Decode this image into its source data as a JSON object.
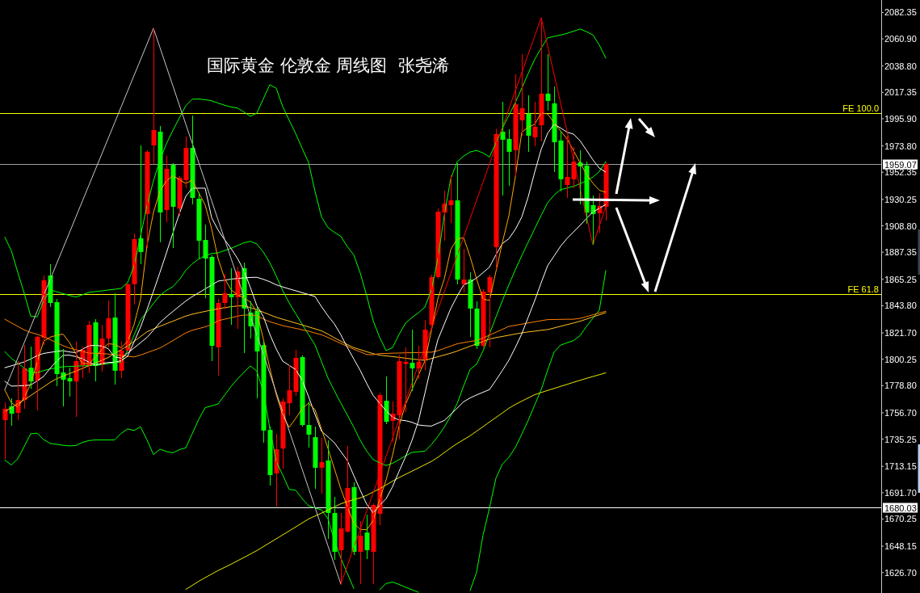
{
  "chart_data": {
    "type": "candlestick",
    "title": "国际黄金 伦敦金 周线图  张尧浠",
    "tick_labels": "y",
    "categories": [
      null,
      null,
      null,
      null,
      null,
      null,
      null,
      null,
      null,
      null,
      null,
      null,
      null,
      null,
      null,
      null,
      null,
      null,
      null,
      null,
      null,
      null,
      null,
      null,
      null,
      null,
      null,
      null,
      null,
      null,
      null,
      null,
      null,
      null,
      null,
      null,
      null,
      null,
      null,
      null,
      null,
      null,
      null,
      null,
      null,
      null,
      null,
      null,
      null,
      null,
      null,
      null,
      null,
      null,
      null,
      null,
      null,
      null,
      null,
      null,
      null,
      null,
      null,
      null,
      null,
      null,
      null,
      null,
      null,
      null,
      null,
      null,
      null,
      null,
      null,
      null,
      null,
      null,
      null,
      null,
      null,
      null,
      null,
      null,
      null,
      null,
      null,
      null,
      null,
      null,
      null,
      null,
      null,
      null
    ],
    "ohlc": [
      [
        1750.7,
        1765.2,
        1719.2,
        1760.0
      ],
      [
        1761.9,
        1768.5,
        1746.1,
        1756.0
      ],
      [
        1756.6,
        1798.6,
        1750.7,
        1767.1
      ],
      [
        1767.1,
        1811.8,
        1760.0,
        1792.8
      ],
      [
        1793.4,
        1810.5,
        1776.1,
        1782.2
      ],
      [
        1783.0,
        1819.1,
        1758.6,
        1818.5
      ],
      [
        1817.8,
        1868.4,
        1811.8,
        1864.5
      ],
      [
        1868.4,
        1877.6,
        1842.8,
        1846.0
      ],
      [
        1846.7,
        1849.3,
        1778.3,
        1788.2
      ],
      [
        1789.5,
        1808.6,
        1761.9,
        1783.6
      ],
      [
        1784.9,
        1793.4,
        1769.8,
        1782.2
      ],
      [
        1782.2,
        1814.7,
        1753.4,
        1798.7
      ],
      [
        1795.4,
        1810.5,
        1784.9,
        1807.9
      ],
      [
        1795.4,
        1831.6,
        1788.9,
        1828.3
      ],
      [
        1830.3,
        1832.9,
        1782.2,
        1794.8
      ],
      [
        1795.4,
        1828.3,
        1790.2,
        1817.1
      ],
      [
        1817.1,
        1848.0,
        1809.9,
        1833.6
      ],
      [
        1834.2,
        1853.9,
        1779.6,
        1790.9
      ],
      [
        1790.9,
        1814.7,
        1784.9,
        1807.3
      ],
      [
        1807.3,
        1861.8,
        1807.3,
        1861.3
      ],
      [
        1861.3,
        1902.5,
        1844.7,
        1898.0
      ],
      [
        1898.6,
        1974.2,
        1877.6,
        1887.5
      ],
      [
        1918.4,
        1970.3,
        1890.7,
        1969.0
      ],
      [
        1974.2,
        2069.5,
        1959.1,
        1986.7
      ],
      [
        1985.4,
        1990.0,
        1895.4,
        1919.6
      ],
      [
        1921.6,
        1965.7,
        1911.8,
        1955.2
      ],
      [
        1958.4,
        1959.8,
        1890.7,
        1924.3
      ],
      [
        1922.9,
        1949.2,
        1917.0,
        1947.9
      ],
      [
        1946.0,
        1981.5,
        1939.4,
        1972.2
      ],
      [
        1972.2,
        1998.5,
        1926.2,
        1931.5
      ],
      [
        1930.8,
        1936.1,
        1881.9,
        1896.7
      ],
      [
        1897.3,
        1909.8,
        1850.0,
        1882.2
      ],
      [
        1883.5,
        1884.8,
        1798.7,
        1811.2
      ],
      [
        1809.9,
        1849.3,
        1786.9,
        1846.0
      ],
      [
        1846.0,
        1869.7,
        1840.8,
        1853.9
      ],
      [
        1853.3,
        1874.3,
        1828.3,
        1850.7
      ],
      [
        1850.7,
        1875.6,
        1825.0,
        1871.7
      ],
      [
        1874.3,
        1878.9,
        1805.3,
        1841.5
      ],
      [
        1838.2,
        1847.4,
        1817.1,
        1827.0
      ],
      [
        1839.5,
        1842.8,
        1768.5,
        1806.6
      ],
      [
        1811.8,
        1814.5,
        1732.3,
        1742.2
      ],
      [
        1742.8,
        1745.5,
        1697.5,
        1706.0
      ],
      [
        1707.4,
        1739.6,
        1680.4,
        1727.1
      ],
      [
        1727.7,
        1768.5,
        1711.3,
        1765.9
      ],
      [
        1764.5,
        1795.4,
        1754.7,
        1775.0
      ],
      [
        1773.7,
        1807.9,
        1770.5,
        1801.4
      ],
      [
        1802.0,
        1803.3,
        1745.5,
        1746.8
      ],
      [
        1746.8,
        1765.9,
        1728.4,
        1738.9
      ],
      [
        1736.9,
        1745.5,
        1694.9,
        1712.0
      ],
      [
        1712.0,
        1736.3,
        1690.9,
        1716.6
      ],
      [
        1717.9,
        1734.3,
        1654.1,
        1675.2
      ],
      [
        1675.2,
        1688.3,
        1637.0,
        1643.6
      ],
      [
        1644.9,
        1675.2,
        1617.3,
        1662.6
      ],
      [
        1660.0,
        1729.7,
        1659.3,
        1695.5
      ],
      [
        1696.2,
        1700.1,
        1641.0,
        1643.6
      ],
      [
        1643.6,
        1668.6,
        1617.3,
        1656.7
      ],
      [
        1659.3,
        1673.8,
        1637.7,
        1644.9
      ],
      [
        1643.6,
        1683.0,
        1617.3,
        1681.7
      ],
      [
        1674.5,
        1773.1,
        1665.3,
        1771.1
      ],
      [
        1766.5,
        1786.2,
        1747.5,
        1749.4
      ],
      [
        1750.1,
        1766.0,
        1732.8,
        1756.0
      ],
      [
        1754.7,
        1803.6,
        1735.3,
        1798.7
      ],
      [
        1796.4,
        1809.9,
        1757.3,
        1798.1
      ],
      [
        1797.4,
        1824.4,
        1774.4,
        1792.8
      ],
      [
        1792.8,
        1811.2,
        1784.3,
        1798.1
      ],
      [
        1799.4,
        1832.3,
        1791.5,
        1824.4
      ],
      [
        1828.3,
        1869.1,
        1824.4,
        1867.1
      ],
      [
        1867.1,
        1922.9,
        1865.8,
        1920.3
      ],
      [
        1919.6,
        1937.4,
        1896.7,
        1926.9
      ],
      [
        1925.6,
        1949.9,
        1911.1,
        1929.5
      ],
      [
        1929.5,
        1959.8,
        1861.2,
        1865.1
      ],
      [
        1861.2,
        1890.1,
        1854.6,
        1865.1
      ],
      [
        1865.1,
        1871.0,
        1818.4,
        1841.5
      ],
      [
        1841.5,
        1847.4,
        1808.6,
        1811.2
      ],
      [
        1811.2,
        1857.3,
        1809.9,
        1855.3
      ],
      [
        1854.6,
        1869.1,
        1809.9,
        1867.1
      ],
      [
        1891.5,
        1987.7,
        1873.6,
        1983.4
      ],
      [
        1985.4,
        2009.7,
        1933.5,
        1978.8
      ],
      [
        1979.5,
        1987.4,
        1941.4,
        1969.0
      ],
      [
        1970.3,
        2032.1,
        1949.2,
        2007.7
      ],
      [
        1994.6,
        2048.5,
        1982.1,
        2004.5
      ],
      [
        2000.0,
        2015.0,
        1968.9,
        1982.1
      ],
      [
        1980.8,
        2009.7,
        1973.5,
        1989.4
      ],
      [
        1990.6,
        2078.1,
        1977.5,
        2016.3
      ],
      [
        2016.3,
        2048.5,
        2002.5,
        2010.4
      ],
      [
        2008.4,
        2022.2,
        1952.5,
        1976.8
      ],
      [
        1978.2,
        1986.1,
        1936.8,
        1946.6
      ],
      [
        1942.0,
        1982.1,
        1931.5,
        1948.6
      ],
      [
        1946.6,
        1972.9,
        1939.4,
        1961.1
      ],
      [
        1960.4,
        1970.3,
        1926.2,
        1957.1
      ],
      [
        1957.8,
        1961.1,
        1910.5,
        1919.6
      ],
      [
        1925.6,
        1933.5,
        1893.4,
        1918.4
      ],
      [
        1919.0,
        1935.4,
        1903.2,
        1924.9
      ],
      [
        1924.3,
        1960.4,
        1913.1,
        1959.07
      ]
    ],
    "colors": [
      "#ff0000",
      "#00ff00",
      "#ff0000",
      "#ff0000",
      "#00ff00",
      "#ff0000",
      "#ff0000",
      "#00ff00",
      "#00ff00",
      "#00ff00",
      "#00ff00",
      "#ff0000",
      "#ff0000",
      "#ff0000",
      "#00ff00",
      "#ff0000",
      "#ff0000",
      "#00ff00",
      "#ff0000",
      "#ff0000",
      "#ff0000",
      "#00ff00",
      "#ff0000",
      "#ff0000",
      "#00ff00",
      "#ff0000",
      "#00ff00",
      "#ff0000",
      "#ff0000",
      "#00ff00",
      "#00ff00",
      "#00ff00",
      "#00ff00",
      "#ff0000",
      "#ff0000",
      "#00ff00",
      "#ff0000",
      "#00ff00",
      "#00ff00",
      "#00ff00",
      "#00ff00",
      "#00ff00",
      "#ff0000",
      "#ff0000",
      "#ff0000",
      "#ff0000",
      "#00ff00",
      "#00ff00",
      "#00ff00",
      "#ff0000",
      "#00ff00",
      "#00ff00",
      "#ff0000",
      "#ff0000",
      "#00ff00",
      "#ff0000",
      "#00ff00",
      "#ff0000",
      "#ff0000",
      "#00ff00",
      "#ff0000",
      "#ff0000",
      "#ff0000",
      "#00ff00",
      "#ff0000",
      "#ff0000",
      "#ff0000",
      "#ff0000",
      "#ff0000",
      "#ff0000",
      "#00ff00",
      "#ff0000",
      "#00ff00",
      "#00ff00",
      "#ff0000",
      "#ff0000",
      "#ff0000",
      "#00ff00",
      "#00ff00",
      "#ff0000",
      "#ff0000",
      "#00ff00",
      "#ff0000",
      "#ff0000",
      "#00ff00",
      "#00ff00",
      "#00ff00",
      "#ff0000",
      "#ff0000",
      "#00ff00",
      "#00ff00",
      "#00ff00",
      "#ff0000",
      "#ff0000"
    ],
    "ylim": [
      1610.1,
      2092.5
    ],
    "yticks": [
      {
        "value": 2082.35,
        "label": "2082.35"
      },
      {
        "value": 2060.9,
        "label": "2060.90"
      },
      {
        "value": 2038.8,
        "label": "2038.80"
      },
      {
        "value": 2017.35,
        "label": "2017.35"
      },
      {
        "value": 1995.9,
        "label": "1995.90"
      },
      {
        "value": 1973.8,
        "label": "1973.80"
      },
      {
        "value": 1952.35,
        "label": "1952.35"
      },
      {
        "value": 1930.25,
        "label": "1930.25"
      },
      {
        "value": 1908.8,
        "label": "1908.80"
      },
      {
        "value": 1887.35,
        "label": "1887.35"
      },
      {
        "value": 1865.25,
        "label": "1865.25"
      },
      {
        "value": 1843.8,
        "label": "1843.80"
      },
      {
        "value": 1821.7,
        "label": "1821.70"
      },
      {
        "value": 1800.25,
        "label": "1800.25"
      },
      {
        "value": 1778.8,
        "label": "1778.80"
      },
      {
        "value": 1756.7,
        "label": "1756.70"
      },
      {
        "value": 1735.25,
        "label": "1735.25"
      },
      {
        "value": 1713.15,
        "label": "1713.15"
      },
      {
        "value": 1691.7,
        "label": "1691.70"
      },
      {
        "value": 1670.25,
        "label": "1670.25"
      },
      {
        "value": 1648.15,
        "label": "1648.15"
      },
      {
        "value": 1626.7,
        "label": "1626.70"
      }
    ],
    "series": [
      {
        "type": "line",
        "color": "#00ff00",
        "values": [
          1899.5,
          1888.6,
          1870.9,
          1853.9,
          1835.3,
          1834.7,
          1847.6,
          1856.8,
          1855.2,
          1853.7,
          1852.1,
          1850.9,
          1852.7,
          1854.6,
          1855.3,
          1855.9,
          1856.6,
          1857.2,
          1857.9,
          1862.6,
          1876.2,
          1900.6,
          1925.4,
          1945.5,
          1962.4,
          1975.5,
          1986.4,
          1996.5,
          2006.5,
          2011.8,
          2012.0,
          2011.4,
          2010.5,
          2008.7,
          2006.9,
          2005.5,
          2004.6,
          2001.4,
          1997.9,
          2000.5,
          2012.1,
          2023.6,
          2020.7,
          2005.8,
          1994.8,
          1983.9,
          1971.9,
          1960.3,
          1936.8,
          1916.1,
          1907.4,
          1903.5,
          1900.2,
          1891.9,
          1885.1,
          1870.4,
          1851.9,
          1831.6,
          1818.0,
          1807.3,
          1809.7,
          1820.4,
          1829.6,
          1834.2,
          1838.0,
          1842.7,
          1856.4,
          1881.7,
          1917.3,
          1947.1,
          1960.9,
          1965.5,
          1968.9,
          1970.1,
          1968.1,
          1964.8,
          1976.2,
          1988.1,
          1998.6,
          2009.1,
          2020.8,
          2032.8,
          2044.2,
          2053.4,
          2061.7,
          2062.9,
          2064.0,
          2065.3,
          2067.1,
          2068.9,
          2066.8,
          2064.1,
          2055.8,
          2045.2
        ]
      },
      {
        "type": "line",
        "color": "#00ff00",
        "values": [
          1806.4,
          1801.0,
          1797.1,
          1793.1,
          1789.2,
          1789.4,
          1791.0,
          1792.4,
          1793.3,
          1794.1,
          1794.4,
          1794.6,
          1794.9,
          1795.1,
          1795.3,
          1795.9,
          1796.7,
          1797.4,
          1798.1,
          1807.5,
          1819.8,
          1832.3,
          1838.9,
          1845.6,
          1852.2,
          1856.2,
          1859.3,
          1865.0,
          1872.6,
          1877.9,
          1881.8,
          1884.4,
          1886.3,
          1886.8,
          1888.7,
          1890.5,
          1892.7,
          1895.0,
          1896.2,
          1894.0,
          1887.5,
          1878.9,
          1868.0,
          1856.1,
          1846.1,
          1837.4,
          1828.8,
          1820.3,
          1811.9,
          1798.4,
          1785.0,
          1774.5,
          1764.6,
          1754.9,
          1745.0,
          1734.3,
          1725.5,
          1718.6,
          1716.0,
          1713.8,
          1715.6,
          1718.6,
          1721.6,
          1724.5,
          1725.0,
          1725.5,
          1730.8,
          1737.4,
          1745.0,
          1754.2,
          1764.3,
          1778.6,
          1792.0,
          1796.2,
          1807.1,
          1820.8,
          1834.6,
          1848.0,
          1860.8,
          1873.1,
          1884.6,
          1895.5,
          1906.5,
          1917.3,
          1927.6,
          1933.8,
          1938.2,
          1939.6,
          1940.9,
          1943.0,
          1945.6,
          1948.4,
          1953.0,
          1961.1
        ]
      },
      {
        "type": "line",
        "color": "#00ff00",
        "values": [
          1718.2,
          1714.3,
          1719.3,
          1729.3,
          1739.6,
          1740.1,
          1734.9,
          1731.8,
          1731.0,
          1730.3,
          1729.8,
          1730.1,
          1732.6,
          1734.1,
          1734.6,
          1734.6,
          1734.6,
          1734.6,
          1740.0,
          1743.6,
          1742.3,
          1745.3,
          1734.6,
          1722.7,
          1727.1,
          1725.2,
          1724.1,
          1726.7,
          1728.2,
          1739.7,
          1751.3,
          1760.9,
          1762.3,
          1763.9,
          1771.0,
          1778.1,
          1784.2,
          1789.5,
          1794.8,
          1790.5,
          1774.1,
          1744.1,
          1717.1,
          1706.1,
          1694.4,
          1693.8,
          1687.0,
          1681.1,
          1679.3,
          1677.7,
          1670.6,
          1652.7,
          1638.4,
          1626.1,
          1613.8,
          null,
          null,
          null,
          1612.7,
          1617.8,
          1619.0,
          1617.1,
          1614.8,
          1612.7,
          1610.7,
          null,
          null,
          null,
          null,
          null,
          null,
          null,
          1612.0,
          1626.9,
          1657.1,
          1679.4,
          1703.5,
          1715.0,
          1720.4,
          1728.5,
          1739.3,
          1750.6,
          1763.1,
          1775.5,
          1791.4,
          1806.1,
          1811.7,
          1813.7,
          1815.4,
          1819.4,
          1826.8,
          1833.7,
          1840.2,
          1872.4
        ]
      },
      {
        "type": "line",
        "color": "#e8e800",
        "values": [
          null,
          null,
          null,
          null,
          null,
          null,
          null,
          null,
          null,
          null,
          null,
          null,
          null,
          null,
          null,
          null,
          null,
          null,
          null,
          null,
          null,
          null,
          null,
          null,
          null,
          null,
          null,
          null,
          1613.0,
          1616.3,
          1619.6,
          1622.6,
          1625.5,
          1628.4,
          1630.9,
          1633.5,
          1636.3,
          1639.0,
          1641.8,
          1644.6,
          1647.8,
          1651.0,
          1654.2,
          1657.4,
          1660.6,
          1663.8,
          1667.1,
          1670.3,
          1672.7,
          1675.1,
          1677.5,
          1680.1,
          1682.7,
          1684.4,
          1686.0,
          1687.5,
          1689.6,
          1692.3,
          1694.9,
          1698.0,
          1701.1,
          1704.0,
          1706.6,
          1709.2,
          1711.8,
          1714.5,
          1717.1,
          1720.4,
          1724.3,
          1728.1,
          1731.7,
          1734.8,
          1738.0,
          1741.7,
          1745.4,
          1749.2,
          1752.9,
          1756.6,
          1760.4,
          1763.5,
          1766.2,
          1768.8,
          1771.4,
          1773.2,
          1774.9,
          1776.5,
          1778.2,
          1779.8,
          1781.5,
          1783.1,
          1784.7,
          1786.2,
          1787.7,
          1789.2
        ]
      },
      {
        "type": "line",
        "color": "#ffc020",
        "values": [
          1757.7,
          1760.9,
          1764.1,
          1767.2,
          1770.7,
          1774.3,
          1777.8,
          1781.4,
          1784.4,
          1786.5,
          1788.6,
          1790.6,
          1792.8,
          1795.0,
          1797.2,
          1799.4,
          1801.7,
          1804.9,
          1808.0,
          1811.1,
          1814.8,
          1818.7,
          1822.6,
          1824.9,
          1827.1,
          1829.2,
          1831.2,
          1833.3,
          1835.4,
          1836.9,
          1838.1,
          1839.2,
          1840.3,
          1841.3,
          1842.2,
          1843.0,
          1843.6,
          1843.7,
          1842.2,
          1840.6,
          1838.5,
          1836.4,
          1834.4,
          1832.8,
          1831.3,
          1829.7,
          1828.2,
          1826.6,
          1825.0,
          1823.4,
          1820.7,
          1817.7,
          1814.9,
          1812.2,
          1809.7,
          1808.1,
          1806.4,
          1804.8,
          1803.6,
          1803.0,
          1802.4,
          1801.8,
          1801.1,
          1800.5,
          1799.9,
          1799.3,
          1800.8,
          1802.3,
          1803.7,
          1805.2,
          1806.9,
          1808.9,
          1810.8,
          1812.8,
          1814.7,
          1816.7,
          1817.9,
          1818.8,
          1819.8,
          1820.8,
          1821.7,
          1822.5,
          1823.1,
          1823.8,
          1824.4,
          1825.7,
          1827.1,
          1828.4,
          1829.7,
          1831.2,
          1832.9,
          1834.7,
          1836.4,
          1838.2
        ]
      },
      {
        "type": "line",
        "color": "#ff8000",
        "values": [
          1832.8,
          1829.9,
          1827.0,
          1824.1,
          1822.1,
          1820.6,
          1818.6,
          1816.2,
          1813.8,
          1811.3,
          1809.4,
          1808.0,
          1806.7,
          1805.3,
          1805.1,
          1804.8,
          1804.5,
          1803.9,
          1803.3,
          1802.7,
          1802.1,
          1803.7,
          1805.6,
          1807.5,
          1809.4,
          1812.3,
          1815.4,
          1818.6,
          1821.7,
          1823.8,
          1825.2,
          1826.6,
          1828.4,
          1831.6,
          1832.8,
          1834.0,
          1835.3,
          1836.2,
          1836.2,
          1835.9,
          1833.0,
          1830.8,
          1829.2,
          1827.6,
          1826.5,
          1825.4,
          1824.2,
          1823.1,
          1821.6,
          1820.2,
          1818.0,
          1815.5,
          1813.1,
          1810.8,
          1808.4,
          1806.3,
          1804.1,
          1803.9,
          1804.9,
          1805.0,
          1805.2,
          1805.3,
          1805.5,
          1805.6,
          1805.7,
          1805.9,
          1806.0,
          1807.2,
          1809.1,
          1811.0,
          1812.8,
          1813.8,
          1814.7,
          1815.5,
          1817.5,
          1819.9,
          1822.2,
          1824.6,
          1827.0,
          1827.9,
          1828.8,
          1829.8,
          1830.7,
          1831.6,
          1832.5,
          1832.6,
          1832.7,
          1832.8,
          1832.8,
          1833.5,
          1834.9,
          1836.4,
          1837.9,
          1839.3
        ]
      },
      {
        "type": "line",
        "color": "#ffffff",
        "values": [
          1793.4,
          1794.9,
          1796.5,
          1798.1,
          1800.4,
          1803.2,
          1805.0,
          1805.8,
          1806.6,
          1807.2,
          1806.2,
          1805.6,
          1808.4,
          1811.2,
          1811.6,
          1811.0,
          1808.8,
          1802.2,
          1801.1,
          1805.3,
          1809.5,
          1813.7,
          1818.0,
          1823.9,
          1830.1,
          1834.8,
          1839.1,
          1843.4,
          1847.6,
          1851.2,
          1854.3,
          1857.5,
          1860.6,
          1863.8,
          1864.6,
          1865.4,
          1866.0,
          1866.4,
          1866.8,
          1866.9,
          1865.3,
          1863.3,
          1860.8,
          1859.1,
          1857.5,
          1856.0,
          1854.4,
          1852.9,
          1851.3,
          1843.1,
          1835.6,
          1829.0,
          1820.1,
          1809.9,
          1800.5,
          1791.1,
          1780.5,
          1770.8,
          1764.5,
          1758.4,
          1753.1,
          1750.9,
          1750.3,
          1749.0,
          1746.8,
          1746.2,
          1745.9,
          1748.2,
          1750.4,
          1755.4,
          1760.5,
          1765.7,
          1768.8,
          1771.2,
          1773.4,
          1775.6,
          1783.2,
          1791.2,
          1799.5,
          1809.8,
          1821.0,
          1834.5,
          1848.0,
          1862.5,
          1876.4,
          1884.3,
          1892.2,
          1898.5,
          1903.8,
          1909.1,
          1914.7,
          1920.0,
          1923.1,
          1926.2
        ]
      },
      {
        "type": "line",
        "color": "#ffffff",
        "values": [
          1782.3,
          1778.4,
          1778.6,
          1778.8,
          1779.3,
          1782.6,
          1786.3,
          1792.8,
          1798.7,
          1803.4,
          1803.6,
          1802.4,
          1800.7,
          1797.9,
          1795.5,
          1796.8,
          1797.6,
          1797.9,
          1799.1,
          1802.6,
          1814.4,
          1826.4,
          1840.7,
          1855.5,
          1870.9,
          1886.7,
          1902.9,
          1918.6,
          1932.8,
          1939.4,
          1939.4,
          1939.4,
          1915.5,
          1905.3,
          1897.6,
          1890.4,
          1882.3,
          1872.3,
          1858.6,
          1843.8,
          1835.1,
          1820.6,
          1808.6,
          1798.7,
          1795.3,
          1791.9,
          1783.4,
          1769.9,
          1755.4,
          1741.7,
          1737.1,
          1732.3,
          1725.1,
          1717.9,
          1705.6,
          1693.7,
          1682.3,
          1675.3,
          1681.4,
          1686.8,
          1696.6,
          1709.0,
          1720.8,
          1734.2,
          1749.9,
          1772.5,
          1795.3,
          1816.0,
          1828.8,
          1841.5,
          1851.6,
          1860.7,
          1863.1,
          1866.3,
          1870.7,
          1875.2,
          1885.3,
          1894.4,
          1898.3,
          1905.9,
          1916.0,
          1932.5,
          1952.5,
          1971.0,
          1984.1,
          1991.5,
          1988.4,
          1985.0,
          1983.4,
          1978.1,
          1970.4,
          1962.5,
          1955.7,
          1952.5
        ]
      },
      {
        "type": "line",
        "color": "#ffa500",
        "values": [
          1775.1,
          1764.9,
          1761.4,
          1769.1,
          1780.3,
          1797.7,
          1814.9,
          1818.2,
          1819.7,
          1820.7,
          1813.9,
          1804.7,
          1796.8,
          1796.8,
          1801.7,
          1808.3,
          1812.9,
          1812.3,
          1809.6,
          1814.9,
          1828.4,
          1849.1,
          1892.9,
          1919.7,
          1937.1,
          1945.3,
          1949.6,
          1946.4,
          1943.3,
          1946.0,
          1935.8,
          1925.7,
          1906.4,
          1882.2,
          1866.2,
          1856.8,
          1852.7,
          1850.3,
          1846.7,
          1838.6,
          1816.7,
          1793.1,
          1771.4,
          1754.7,
          1744.9,
          1752.0,
          1759.9,
          1764.6,
          1759.3,
          1743.5,
          1727.8,
          1711.2,
          1694.6,
          1680.4,
          1666.7,
          1661.9,
          1661.5,
          1669.1,
          1686.3,
          1702.0,
          1722.3,
          1745.7,
          1763.4,
          1775.6,
          1787.2,
          1798.7,
          1823.2,
          1849.3,
          1865.5,
          1889.4,
          1898.2,
          1899.1,
          1883.7,
          1865.7,
          1849.2,
          1848.1,
          1871.7,
          1895.3,
          1917.0,
          1948.6,
          1985.0,
          1989.0,
          1991.5,
          2000.5,
          1999.8,
          1992.8,
          1986.0,
          1979.5,
          1970.0,
          1960.2,
          1950.8,
          1943.5,
          1937.7,
          1936.1
        ]
      },
      {
        "type": "line",
        "color": "#c8c8c8",
        "values": [
          1775.5,
          1788.3,
          1801.1,
          1813.8,
          1826.6,
          1839.4,
          1852.2,
          1865.0,
          1877.8,
          1890.5,
          1903.3,
          1916.1,
          1928.9,
          1941.7,
          1954.5,
          1967.2,
          1980.0,
          1992.8,
          2005.6,
          2018.4,
          2031.2,
          2043.9,
          2056.7,
          2069.5,
          2053.9,
          2038.3,
          2022.7,
          2007.1,
          1991.5,
          1975.9,
          1960.3,
          1944.8,
          1929.2,
          1913.6,
          1898.0,
          1882.4,
          1866.8,
          1851.2,
          1835.6,
          1820.0,
          1804.4,
          1788.8,
          1773.2,
          1757.7,
          1742.1,
          1726.5,
          1710.9,
          1695.3,
          1679.7,
          1664.1,
          1648.5,
          1632.9,
          1617.3,
          null,
          null,
          null,
          null,
          null,
          null,
          null,
          null,
          null,
          null,
          null,
          null,
          null,
          null,
          null,
          null,
          null,
          null,
          null,
          null,
          null,
          null,
          null,
          null,
          null,
          null,
          null,
          null,
          null,
          null,
          null,
          null,
          null,
          null,
          null,
          null,
          null,
          null,
          null,
          null,
          null
        ]
      },
      {
        "type": "line",
        "color": "#ff0000",
        "values": [
          null,
          null,
          null,
          null,
          null,
          null,
          null,
          null,
          null,
          null,
          null,
          null,
          null,
          null,
          null,
          null,
          null,
          null,
          null,
          null,
          null,
          null,
          null,
          null,
          null,
          null,
          null,
          null,
          null,
          null,
          null,
          null,
          null,
          null,
          null,
          null,
          null,
          null,
          null,
          null,
          null,
          null,
          null,
          null,
          null,
          null,
          null,
          null,
          null,
          null,
          null,
          null,
          1617.3,
          1632.2,
          1647.0,
          1661.9,
          1676.8,
          1691.6,
          1706.5,
          1721.4,
          1736.2,
          1751.1,
          1766.0,
          1780.8,
          1795.7,
          1810.5,
          1825.4,
          1840.3,
          1855.1,
          1870.0,
          1884.9,
          1899.7,
          1914.6,
          1929.5,
          1944.3,
          1959.2,
          1974.1,
          1988.9,
          2003.8,
          2018.6,
          2033.5,
          2048.4,
          2063.2,
          2078.1,
          2055.0,
          2031.9,
          2008.8,
          1985.8,
          1962.7,
          1939.6,
          1916.5,
          1893.4,
          1908.8,
          1924.2
        ]
      }
    ],
    "ref_lines": [
      {
        "axis": "y",
        "value": 2000.5,
        "label": "FE 100.0",
        "color": "#ffff00"
      },
      {
        "axis": "y",
        "value": 1853.0,
        "label": "FE 61.8",
        "color": "#ffff00"
      },
      {
        "axis": "y",
        "value": 1959.07,
        "label": "1959.07",
        "color": "#a0a0a0"
      },
      {
        "axis": "y",
        "value": 1680.03,
        "label": "1680.03",
        "color": "#ffffff"
      }
    ]
  }
}
